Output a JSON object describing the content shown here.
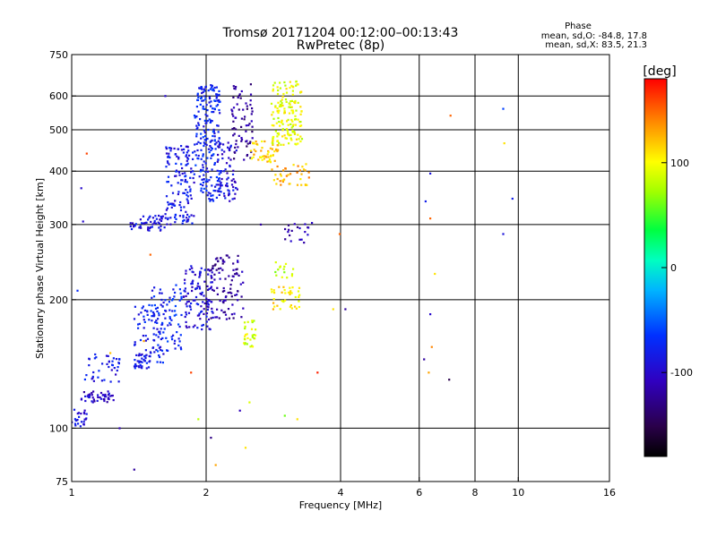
{
  "title": {
    "line1": "Tromsø 20171204 00:12:00–00:13:43",
    "line2": "RwPretec (8p)"
  },
  "phase_stats": {
    "heading": "Phase",
    "line1": "mean, sd,O: -84.8, 17.8",
    "line2": "mean, sd,X:  83.5, 21.3"
  },
  "colorbar": {
    "label": "[deg]",
    "min": -180,
    "max": 180,
    "ticks": [
      {
        "value": 100,
        "label": "100"
      },
      {
        "value": 0,
        "label": "0"
      },
      {
        "value": -100,
        "label": "-100"
      }
    ]
  },
  "chart_data": {
    "type": "scatter",
    "title": "Tromsø 20171204 00:12:00–00:13:43",
    "subtitle": "RwPretec (8p)",
    "xlabel": "Frequency [MHz]",
    "ylabel": "Stationary phase Virtual Height [km]",
    "xscale": "log",
    "yscale": "log",
    "xlim": [
      1,
      16
    ],
    "ylim": [
      75,
      750
    ],
    "xticks": [
      1,
      2,
      4,
      6,
      8,
      10,
      16
    ],
    "xtick_labels": [
      "1",
      "2",
      "4",
      "6",
      "8",
      "10",
      "16"
    ],
    "yticks": [
      75,
      100,
      200,
      300,
      400,
      500,
      600,
      750
    ],
    "ytick_labels": [
      "75",
      "100",
      "200",
      "300",
      "400",
      "500",
      "600",
      "750"
    ],
    "grid_x": [
      2,
      4,
      6,
      8,
      10
    ],
    "grid_y": [
      100,
      200,
      300,
      400,
      500,
      600
    ],
    "color_by": "phase [deg]",
    "clusters": [
      {
        "f": [
          1.0,
          1.08
        ],
        "h": [
          100,
          112
        ],
        "phase": -90,
        "n": 25
      },
      {
        "f": [
          1.05,
          1.25
        ],
        "h": [
          115,
          122
        ],
        "phase": -105,
        "n": 45
      },
      {
        "f": [
          1.07,
          1.28
        ],
        "h": [
          128,
          150
        ],
        "phase": -85,
        "n": 40
      },
      {
        "f": [
          1.38,
          1.5
        ],
        "h": [
          138,
          150
        ],
        "phase": -85,
        "n": 35
      },
      {
        "f": [
          1.38,
          1.62
        ],
        "h": [
          142,
          195
        ],
        "phase": -80,
        "n": 60
      },
      {
        "f": [
          1.5,
          1.78
        ],
        "h": [
          150,
          220
        ],
        "phase": -75,
        "n": 90
      },
      {
        "f": [
          1.78,
          2.08
        ],
        "h": [
          170,
          240
        ],
        "phase": -95,
        "n": 120
      },
      {
        "f": [
          2.05,
          2.42
        ],
        "h": [
          180,
          255
        ],
        "phase": -120,
        "n": 90
      },
      {
        "f": [
          2.42,
          2.58
        ],
        "h": [
          155,
          180
        ],
        "phase": 90,
        "n": 30
      },
      {
        "f": [
          2.78,
          3.25
        ],
        "h": [
          190,
          215
        ],
        "phase": 110,
        "n": 40
      },
      {
        "f": [
          2.85,
          3.15
        ],
        "h": [
          225,
          245
        ],
        "phase": 80,
        "n": 15
      },
      {
        "f": [
          1.35,
          1.62
        ],
        "h": [
          290,
          315
        ],
        "phase": -90,
        "n": 50
      },
      {
        "f": [
          1.62,
          1.88
        ],
        "h": [
          300,
          460
        ],
        "phase": -85,
        "n": 140
      },
      {
        "f": [
          1.88,
          2.15
        ],
        "h": [
          340,
          640
        ],
        "phase": -75,
        "n": 220
      },
      {
        "f": [
          2.12,
          2.35
        ],
        "h": [
          340,
          470
        ],
        "phase": -95,
        "n": 70
      },
      {
        "f": [
          2.28,
          2.55
        ],
        "h": [
          420,
          640
        ],
        "phase": -125,
        "n": 70
      },
      {
        "f": [
          2.5,
          2.9
        ],
        "h": [
          420,
          470
        ],
        "phase": 115,
        "n": 50
      },
      {
        "f": [
          2.8,
          3.28
        ],
        "h": [
          460,
          650
        ],
        "phase": 95,
        "n": 150
      },
      {
        "f": [
          2.8,
          3.4
        ],
        "h": [
          370,
          420
        ],
        "phase": 125,
        "n": 40
      },
      {
        "f": [
          3.0,
          3.45
        ],
        "h": [
          270,
          305
        ],
        "phase": -115,
        "n": 20
      }
    ],
    "outliers": [
      {
        "f": 1.05,
        "h": 365,
        "phase": -100
      },
      {
        "f": 1.08,
        "h": 440,
        "phase": 160
      },
      {
        "f": 1.06,
        "h": 305,
        "phase": -100
      },
      {
        "f": 1.03,
        "h": 210,
        "phase": -70
      },
      {
        "f": 1.22,
        "h": 150,
        "phase": 120
      },
      {
        "f": 1.28,
        "h": 100,
        "phase": -110
      },
      {
        "f": 1.38,
        "h": 80,
        "phase": -120
      },
      {
        "f": 1.45,
        "h": 160,
        "phase": 130
      },
      {
        "f": 1.5,
        "h": 255,
        "phase": 150
      },
      {
        "f": 1.62,
        "h": 600,
        "phase": -100
      },
      {
        "f": 1.85,
        "h": 135,
        "phase": 160
      },
      {
        "f": 1.92,
        "h": 105,
        "phase": 80
      },
      {
        "f": 2.05,
        "h": 95,
        "phase": -130
      },
      {
        "f": 2.1,
        "h": 82,
        "phase": 130
      },
      {
        "f": 2.45,
        "h": 90,
        "phase": 110
      },
      {
        "f": 2.38,
        "h": 110,
        "phase": -110
      },
      {
        "f": 2.5,
        "h": 115,
        "phase": 90
      },
      {
        "f": 3.0,
        "h": 107,
        "phase": 60
      },
      {
        "f": 3.2,
        "h": 105,
        "phase": 110
      },
      {
        "f": 3.55,
        "h": 135,
        "phase": 170
      },
      {
        "f": 3.85,
        "h": 190,
        "phase": 110
      },
      {
        "f": 3.98,
        "h": 285,
        "phase": 150
      },
      {
        "f": 4.1,
        "h": 190,
        "phase": -120
      },
      {
        "f": 2.65,
        "h": 300,
        "phase": -120
      },
      {
        "f": 6.2,
        "h": 340,
        "phase": -80
      },
      {
        "f": 6.35,
        "h": 310,
        "phase": 150
      },
      {
        "f": 6.5,
        "h": 230,
        "phase": 110
      },
      {
        "f": 6.35,
        "h": 185,
        "phase": -100
      },
      {
        "f": 6.15,
        "h": 145,
        "phase": -120
      },
      {
        "f": 6.3,
        "h": 135,
        "phase": 130
      },
      {
        "f": 6.4,
        "h": 155,
        "phase": 140
      },
      {
        "f": 7.0,
        "h": 130,
        "phase": -150
      },
      {
        "f": 7.05,
        "h": 540,
        "phase": 150
      },
      {
        "f": 9.25,
        "h": 560,
        "phase": -60
      },
      {
        "f": 9.3,
        "h": 465,
        "phase": 110
      },
      {
        "f": 9.7,
        "h": 345,
        "phase": -80
      },
      {
        "f": 9.25,
        "h": 285,
        "phase": -90
      },
      {
        "f": 6.35,
        "h": 395,
        "phase": -90
      }
    ]
  }
}
